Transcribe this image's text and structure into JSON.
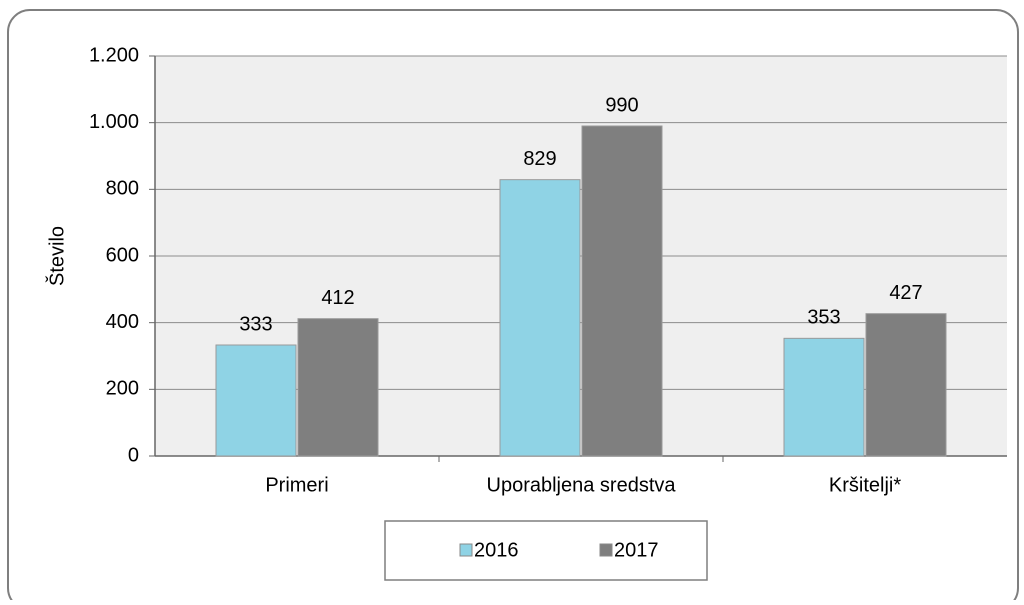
{
  "chart_data": {
    "type": "bar",
    "ylabel": "Število",
    "categories": [
      "Primeri",
      "Uporabljena sredstva",
      "Kršitelji*"
    ],
    "series": [
      {
        "name": "2016",
        "color": "#8fd3e5",
        "values": [
          333,
          829,
          353
        ]
      },
      {
        "name": "2017",
        "color": "#7f7f7f",
        "values": [
          412,
          990,
          427
        ]
      }
    ],
    "ylim": [
      0,
      1200
    ],
    "yticks": [
      0,
      200,
      400,
      600,
      800,
      {
        "value": 1000,
        "label": "1.000"
      },
      {
        "value": 1200,
        "label": "1.200"
      }
    ],
    "grid": true,
    "legend": "bottom"
  }
}
